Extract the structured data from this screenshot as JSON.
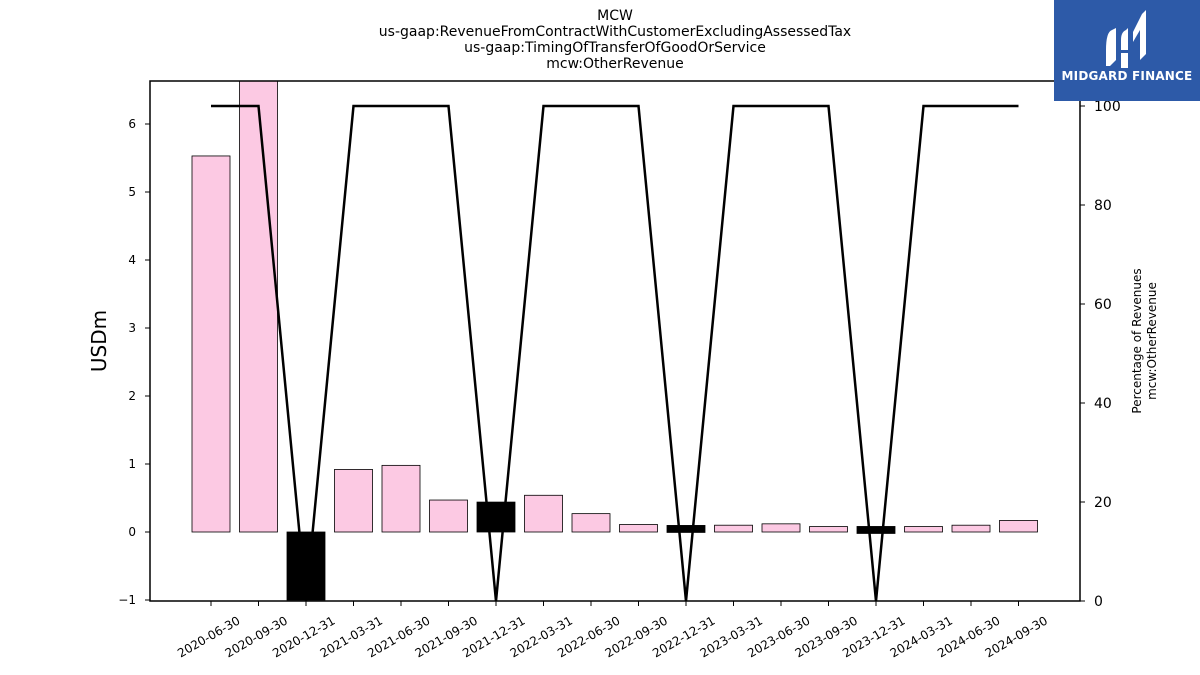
{
  "chart_data": {
    "type": "bar",
    "title": [
      "MCW",
      "us-gaap:RevenueFromContractWithCustomerExcludingAssessedTax",
      "us-gaap:TimingOfTransferOfGoodOrService",
      "mcw:OtherRevenue"
    ],
    "ylabel": "USDm",
    "y2label": [
      "Percentage of Revenues",
      "mcw:OtherRevenue"
    ],
    "categories": [
      "2020-06-30",
      "2020-09-30",
      "2020-12-31",
      "2021-03-31",
      "2021-06-30",
      "2021-09-30",
      "2021-12-31",
      "2022-03-31",
      "2022-06-30",
      "2022-09-30",
      "2022-12-31",
      "2023-03-31",
      "2023-06-30",
      "2023-09-30",
      "2023-12-31",
      "2024-03-31",
      "2024-06-30",
      "2024-09-30"
    ],
    "series": [
      {
        "values": [
          5.53,
          6.65,
          -1.0,
          0.92,
          0.98,
          0.47,
          0.44,
          0.54,
          0.27,
          0.11,
          0.09,
          0.1,
          0.12,
          0.08,
          0.06,
          0.08,
          0.1,
          0.17
        ],
        "axis": "left"
      },
      {
        "values": [
          100,
          100,
          0,
          100,
          100,
          100,
          0,
          100,
          100,
          100,
          0,
          100,
          100,
          100,
          0,
          100,
          100,
          100
        ],
        "axis": "right"
      }
    ],
    "highlight_categories": [
      "2020-12-31",
      "2021-12-31",
      "2022-12-31",
      "2023-12-31"
    ],
    "ylim": [
      -1.0,
      6.6
    ],
    "y2lim": [
      0,
      105
    ],
    "yticks": [
      -1,
      0,
      1,
      2,
      3,
      4,
      5,
      6
    ],
    "y2ticks": [
      0,
      20,
      40,
      60,
      80,
      100
    ],
    "grid": false,
    "colors": {
      "bar": "#fcc9e3",
      "highlight": "#000000",
      "line": "#000000"
    }
  },
  "logo": {
    "text": "MIDGARD FINANCE"
  }
}
